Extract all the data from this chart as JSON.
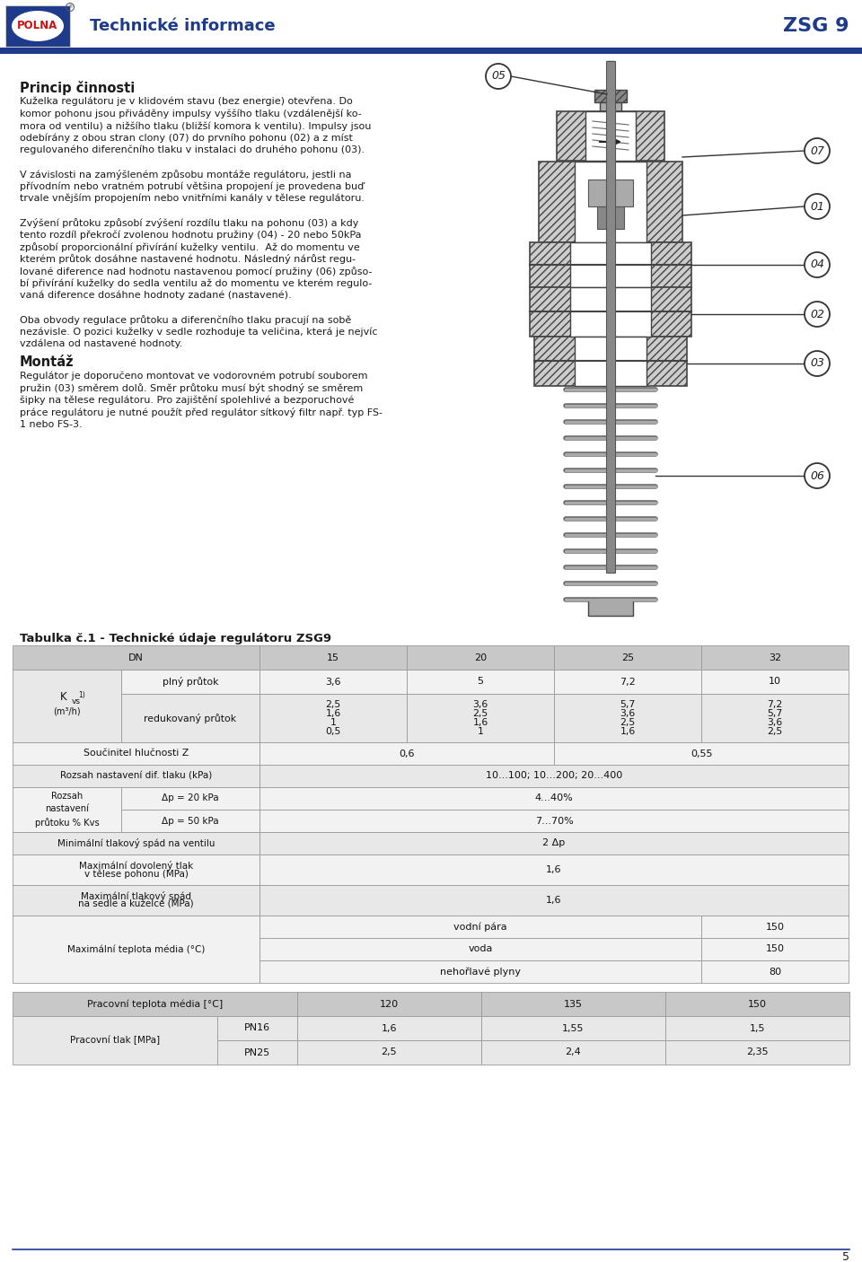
{
  "page_bg": "#ffffff",
  "header_title": "Technické informace",
  "header_product": "ZSG 9",
  "body_text_color": "#1a1a1a",
  "section_title1": "Princip činnosti",
  "section_title2": "Montáž",
  "table1_title": "Tabulka č.1 - Technické údaje regulátoru ZSG9",
  "footer_text": "5",
  "blue_color": "#1e3a8a",
  "gray_dark": "#b0b0b0",
  "gray_light": "#e8e8e8",
  "gray_mid": "#d0d0d0",
  "text_lines_col1": [
    "Kuželka regulátoru je v klidovém stavu (bez energie) otevřena. Do",
    "komor pohonu jsou přiváděny impulsy vyššího tlaku (vzdálenější ko-",
    "mora od ventilu) a nižšího tlaku (bližší komora k ventilu). Impulsy jsou",
    "odebírány z obou stran clony (07) do prvního pohonu (02) a z míst",
    "regulovaného diferenčního tlaku v instalaci do druhého pohonu (03).",
    "",
    "V závislosti na zamýšleném způsobu montáže regulátoru, jestli na",
    "přívodním nebo vratném potrubí většina propojení je provedena buď",
    "trvale vnějším propojením nebo vnitřními kanály v tělese regulátoru.",
    "",
    "Zvýšení průtoku způsobí zvýšení rozdílu tlaku na pohonu (03) a kdy",
    "tento rozdíl překročí zvolenou hodnotu pružiny (04) - 20 nebo 50kPa",
    "způsobí proporcionální přivírání kuželky ventilu.  Až do momentu ve",
    "kterém průtok dosáhne nastavené hodnotu. Následný nárůst regu-",
    "lované diference nad hodnotu nastavenou pomocí pružiny (06) způso-",
    "bí přivírání kuželky do sedla ventilu až do momentu ve kterém regulo-",
    "vaná diference dosáhne hodnoty zadané (nastavené).",
    "",
    "Oba obvody regulace průtoku a diferenčního tlaku pracují na sobě",
    "nezávisle. O pozici kuželky v sedle rozhoduje ta veličina, která je nejvíc",
    "vzdálena od nastavené hodnoty."
  ],
  "montaz_lines": [
    "Regulátor je doporučeno montovat ve vodorovném potrubí souborem",
    "pružin (03) směrem dolů. Směr průtoku musí být shodný se směrem",
    "šipky na tělese regulátoru. Pro zajištění spolehlivé a bezporuchové",
    "práce regulátoru je nutné použít před regulátor sítkový filtr např. typ FS-",
    "1 nebo FS-3."
  ]
}
